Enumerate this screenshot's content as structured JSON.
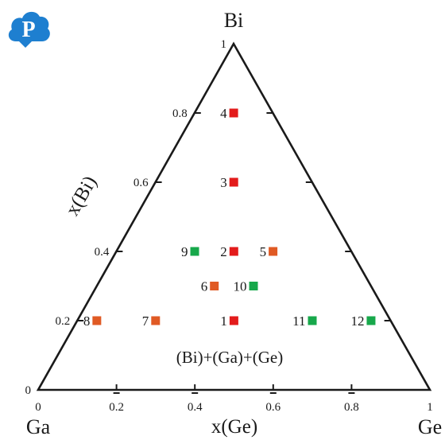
{
  "logo": {
    "letter": "P",
    "color": "#1e7fd0"
  },
  "chart_data": {
    "type": "scatter",
    "subtype": "ternary",
    "vertices": {
      "top": "Bi",
      "left": "Ga",
      "right": "Ge"
    },
    "axis_labels": {
      "left": "x(Bi)",
      "bottom": "x(Ge)"
    },
    "ticks": {
      "bottom": [
        "0",
        "0.2",
        "0.4",
        "0.6",
        "0.8",
        "1"
      ],
      "left": [
        "0",
        "0.2",
        "0.4",
        "0.6",
        "0.8",
        "1"
      ]
    },
    "region_label": "(Bi)+(Ga)+(Ge)",
    "colors": {
      "red": "#e31b1b",
      "orange": "#e05a24",
      "green": "#17a84b",
      "line": "#1a1a1a"
    },
    "points": [
      {
        "label": "1",
        "x_ge": 0.4,
        "x_bi": 0.2,
        "color": "red"
      },
      {
        "label": "2",
        "x_ge": 0.3,
        "x_bi": 0.4,
        "color": "red"
      },
      {
        "label": "3",
        "x_ge": 0.2,
        "x_bi": 0.6,
        "color": "red"
      },
      {
        "label": "4",
        "x_ge": 0.1,
        "x_bi": 0.8,
        "color": "red"
      },
      {
        "label": "5",
        "x_ge": 0.4,
        "x_bi": 0.4,
        "color": "orange"
      },
      {
        "label": "6",
        "x_ge": 0.3,
        "x_bi": 0.3,
        "color": "orange"
      },
      {
        "label": "7",
        "x_ge": 0.2,
        "x_bi": 0.2,
        "color": "orange"
      },
      {
        "label": "8",
        "x_ge": 0.05,
        "x_bi": 0.2,
        "color": "orange"
      },
      {
        "label": "9",
        "x_ge": 0.2,
        "x_bi": 0.4,
        "color": "green"
      },
      {
        "label": "10",
        "x_ge": 0.4,
        "x_bi": 0.3,
        "color": "green"
      },
      {
        "label": "11",
        "x_ge": 0.6,
        "x_bi": 0.2,
        "color": "green"
      },
      {
        "label": "12",
        "x_ge": 0.75,
        "x_bi": 0.2,
        "color": "green"
      }
    ]
  }
}
